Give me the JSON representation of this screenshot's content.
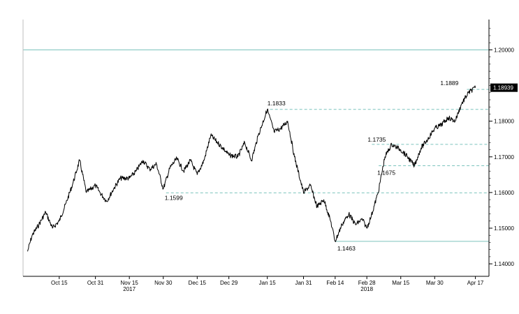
{
  "chart_data": {
    "type": "line",
    "title": "",
    "xlabel": "",
    "ylabel": "",
    "ylim": [
      1.1365,
      1.2085
    ],
    "yticks": [
      {
        "value": 1.14,
        "label": "1.14000"
      },
      {
        "value": 1.15,
        "label": "1.15000"
      },
      {
        "value": 1.16,
        "label": "1.16000"
      },
      {
        "value": 1.17,
        "label": "1.17000"
      },
      {
        "value": 1.18,
        "label": "1.18000"
      },
      {
        "value": 1.2,
        "label": "1.20000"
      }
    ],
    "xticks": [
      {
        "date": "2017-10-15",
        "label": "Oct 15"
      },
      {
        "date": "2017-10-31",
        "label": "Oct 31"
      },
      {
        "date": "2017-11-15",
        "label": "Nov 15"
      },
      {
        "date": "2017-11-30",
        "label": "Nov 30"
      },
      {
        "date": "2017-12-15",
        "label": "Dec 15"
      },
      {
        "date": "2017-12-29",
        "label": "Dec 29"
      },
      {
        "date": "2018-01-15",
        "label": "Jan 15"
      },
      {
        "date": "2018-01-31",
        "label": "Jan 31"
      },
      {
        "date": "2018-02-14",
        "label": "Feb 14"
      },
      {
        "date": "2018-02-28",
        "label": "Feb 28"
      },
      {
        "date": "2018-03-15",
        "label": "Mar 15"
      },
      {
        "date": "2018-03-30",
        "label": "Mar 30"
      },
      {
        "date": "2018-04-17",
        "label": "Apr 17"
      }
    ],
    "year_labels": [
      {
        "date": "2017-11-15",
        "label": "2017"
      },
      {
        "date": "2018-02-28",
        "label": "2018"
      }
    ],
    "last_price": {
      "value": 1.18939,
      "label": "1.18939"
    },
    "annotations": [
      {
        "date": "2017-11-30",
        "value": 1.1599,
        "label": "1.1599"
      },
      {
        "date": "2018-01-15",
        "value": 1.1833,
        "label": "1.1833"
      },
      {
        "date": "2018-02-14",
        "value": 1.1463,
        "label": "1.1463"
      },
      {
        "date": "2018-03-01",
        "value": 1.1735,
        "label": "1.1735"
      },
      {
        "date": "2018-03-04",
        "value": 1.1675,
        "label": "1.1675"
      },
      {
        "date": "2018-04-12",
        "value": 1.1889,
        "label": "1.1889"
      }
    ],
    "horizontal_lines": [
      {
        "value": 1.2,
        "style": "solid"
      },
      {
        "value": 1.1889,
        "style": "dashed"
      },
      {
        "value": 1.1833,
        "style": "dashed"
      },
      {
        "value": 1.1735,
        "style": "dashed"
      },
      {
        "value": 1.1675,
        "style": "dashed"
      },
      {
        "value": 1.1599,
        "style": "dashed"
      },
      {
        "value": 1.1463,
        "style": "solid"
      }
    ],
    "series": [
      {
        "x": [
          "2017-10-01",
          "2017-10-03",
          "2017-10-06",
          "2017-10-09",
          "2017-10-12",
          "2017-10-15",
          "2017-10-18",
          "2017-10-21",
          "2017-10-24",
          "2017-10-27",
          "2017-10-31",
          "2017-11-02",
          "2017-11-05",
          "2017-11-08",
          "2017-11-11",
          "2017-11-15",
          "2017-11-18",
          "2017-11-21",
          "2017-11-24",
          "2017-11-27",
          "2017-11-30",
          "2017-12-03",
          "2017-12-06",
          "2017-12-09",
          "2017-12-12",
          "2017-12-15",
          "2017-12-18",
          "2017-12-21",
          "2017-12-24",
          "2017-12-27",
          "2017-12-29",
          "2018-01-02",
          "2018-01-05",
          "2018-01-08",
          "2018-01-11",
          "2018-01-15",
          "2018-01-18",
          "2018-01-21",
          "2018-01-24",
          "2018-01-27",
          "2018-01-31",
          "2018-02-03",
          "2018-02-06",
          "2018-02-09",
          "2018-02-12",
          "2018-02-14",
          "2018-02-17",
          "2018-02-20",
          "2018-02-23",
          "2018-02-26",
          "2018-02-28",
          "2018-03-02",
          "2018-03-05",
          "2018-03-08",
          "2018-03-11",
          "2018-03-15",
          "2018-03-18",
          "2018-03-21",
          "2018-03-24",
          "2018-03-27",
          "2018-03-30",
          "2018-04-02",
          "2018-04-05",
          "2018-04-08",
          "2018-04-11",
          "2018-04-14",
          "2018-04-17"
        ],
        "values": [
          1.1435,
          1.148,
          1.151,
          1.1545,
          1.15,
          1.152,
          1.157,
          1.1625,
          1.169,
          1.16,
          1.162,
          1.16,
          1.1575,
          1.161,
          1.164,
          1.164,
          1.166,
          1.169,
          1.1665,
          1.168,
          1.161,
          1.167,
          1.1695,
          1.166,
          1.169,
          1.165,
          1.169,
          1.176,
          1.174,
          1.172,
          1.1705,
          1.17,
          1.174,
          1.169,
          1.176,
          1.1833,
          1.177,
          1.178,
          1.18,
          1.17,
          1.16,
          1.162,
          1.156,
          1.158,
          1.152,
          1.1463,
          1.151,
          1.154,
          1.151,
          1.1525,
          1.15,
          1.1535,
          1.16,
          1.17,
          1.1735,
          1.172,
          1.17,
          1.1675,
          1.1725,
          1.175,
          1.178,
          1.179,
          1.181,
          1.18,
          1.185,
          1.188,
          1.18939
        ]
      }
    ]
  }
}
